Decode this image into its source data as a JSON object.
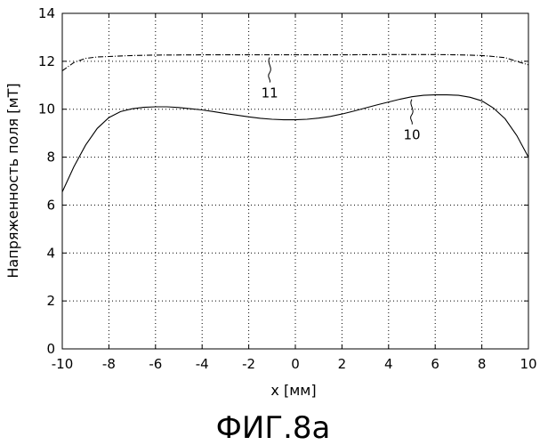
{
  "chart_data": {
    "type": "line",
    "xlabel": "x [мм]",
    "ylabel": "Напряженность поля [мТ]",
    "xlim": [
      -10,
      10
    ],
    "ylim": [
      0,
      14
    ],
    "xticks": [
      -10,
      -8,
      -6,
      -4,
      -2,
      0,
      2,
      4,
      6,
      8,
      10
    ],
    "yticks": [
      0,
      2,
      4,
      6,
      8,
      10,
      12,
      14
    ],
    "grid": true,
    "series": [
      {
        "name": "10",
        "style": "solid",
        "x": [
          -10,
          -9.5,
          -9,
          -8.5,
          -8,
          -7.5,
          -7,
          -6.5,
          -6,
          -5.5,
          -5,
          -4.5,
          -4,
          -3.5,
          -3,
          -2.5,
          -2,
          -1.5,
          -1,
          -0.5,
          0,
          0.5,
          1,
          1.5,
          2,
          2.5,
          3,
          3.5,
          4,
          4.5,
          5,
          5.5,
          6,
          6.5,
          7,
          7.5,
          8,
          8.5,
          9,
          9.5,
          10
        ],
        "y": [
          6.55,
          7.6,
          8.5,
          9.2,
          9.65,
          9.9,
          10.02,
          10.08,
          10.1,
          10.1,
          10.07,
          10.02,
          9.97,
          9.9,
          9.82,
          9.75,
          9.68,
          9.62,
          9.58,
          9.56,
          9.56,
          9.58,
          9.63,
          9.7,
          9.8,
          9.92,
          10.05,
          10.18,
          10.3,
          10.42,
          10.52,
          10.58,
          10.6,
          10.6,
          10.58,
          10.5,
          10.35,
          10.05,
          9.6,
          8.9,
          8.0
        ]
      },
      {
        "name": "11",
        "style": "dash-dot",
        "x": [
          -10,
          -9.5,
          -9,
          -8.5,
          -8,
          -7,
          -6,
          -4,
          -2,
          0,
          2,
          4,
          6,
          7,
          8,
          8.5,
          9,
          9.5,
          10
        ],
        "y": [
          11.6,
          11.95,
          12.12,
          12.18,
          12.2,
          12.24,
          12.26,
          12.27,
          12.27,
          12.27,
          12.27,
          12.28,
          12.28,
          12.27,
          12.24,
          12.2,
          12.15,
          12.0,
          11.85
        ]
      }
    ],
    "annotations": [
      {
        "text": "11",
        "series": "11"
      },
      {
        "text": "10",
        "series": "10"
      }
    ]
  },
  "caption": "ФИГ.8а"
}
